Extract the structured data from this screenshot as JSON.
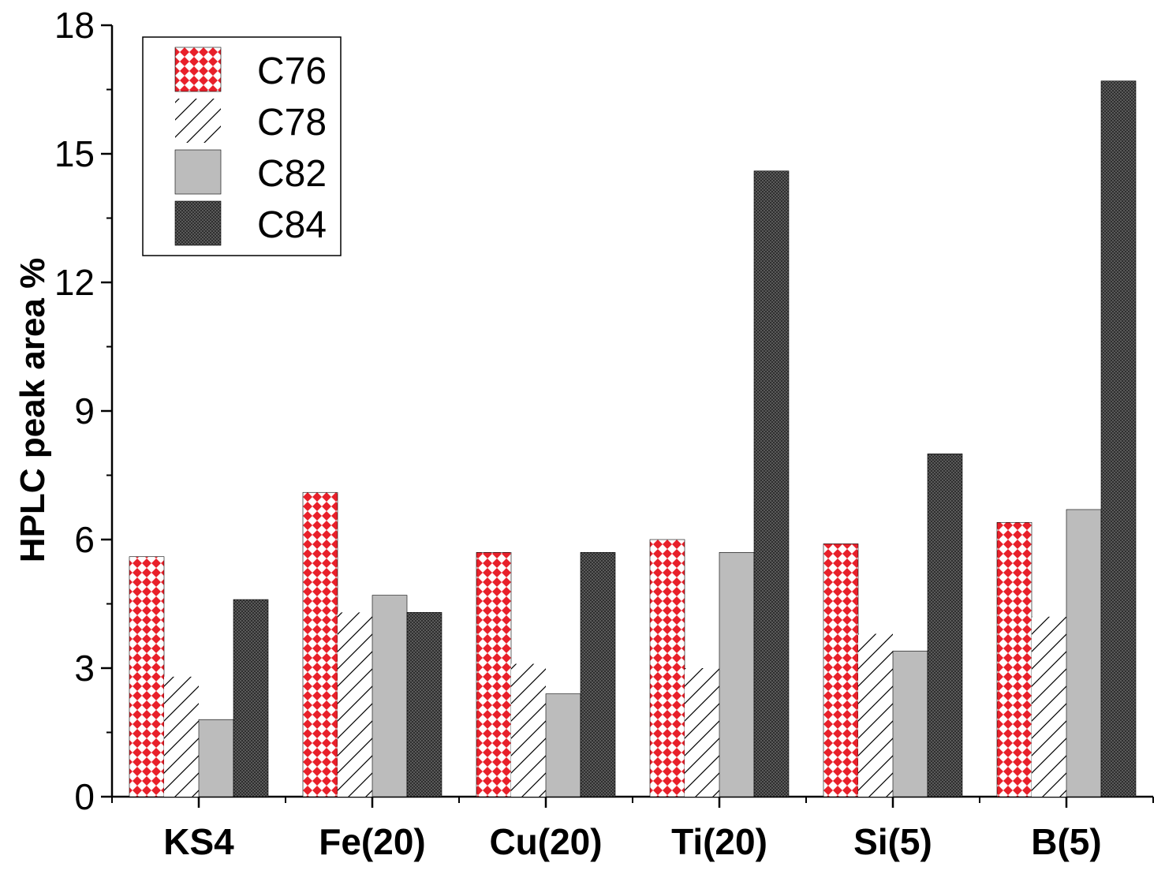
{
  "chart_data": {
    "type": "bar",
    "title": "",
    "xlabel": "",
    "ylabel": "HPLC peak area %",
    "ylim": [
      0,
      18
    ],
    "yticks": [
      "0",
      "3",
      "6",
      "9",
      "12",
      "15",
      "18"
    ],
    "categories": [
      "KS4",
      "Fe(20)",
      "Cu(20)",
      "Ti(20)",
      "Si(5)",
      "B(5)"
    ],
    "series": [
      {
        "name": "C76",
        "values": [
          5.6,
          7.1,
          5.7,
          6.0,
          5.9,
          6.4
        ],
        "pattern": "red-checker",
        "color": "#e8202a"
      },
      {
        "name": "C78",
        "values": [
          2.8,
          4.3,
          3.1,
          3.0,
          3.8,
          4.2
        ],
        "pattern": "diagonal-hatch",
        "color": "#ffffff"
      },
      {
        "name": "C82",
        "values": [
          1.8,
          4.7,
          2.4,
          5.7,
          3.4,
          6.7
        ],
        "pattern": "solid-light-gray",
        "color": "#bcbcbc"
      },
      {
        "name": "C84",
        "values": [
          4.6,
          4.3,
          5.7,
          14.6,
          8.0,
          16.7
        ],
        "pattern": "dark-crosshatch",
        "color": "#4a4a4a"
      }
    ],
    "grid": false,
    "legend_position": "top-left"
  }
}
